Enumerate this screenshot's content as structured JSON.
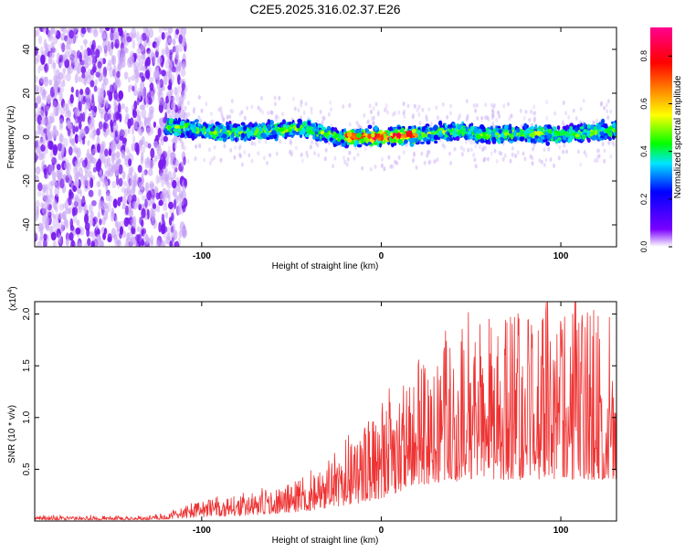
{
  "page_title": "C2E5.2025.316.02.37.E26",
  "chart_data": [
    {
      "type": "heatmap",
      "title": "C2E5.2025.316.02.37.E26",
      "xlabel": "Height of straight line (km)",
      "ylabel": "Frequency (Hz)",
      "xlim": [
        -193,
        131
      ],
      "ylim": [
        -50,
        50
      ],
      "x_ticks": [
        {
          "value": -100,
          "label": "-100"
        },
        {
          "value": 0,
          "label": "0"
        },
        {
          "value": 100,
          "label": "100"
        }
      ],
      "y_ticks": [
        {
          "value": -40,
          "label": "-40"
        },
        {
          "value": -20,
          "label": "-20"
        },
        {
          "value": 0,
          "label": "0"
        },
        {
          "value": 20,
          "label": "20"
        },
        {
          "value": 40,
          "label": "40"
        }
      ],
      "noise_region_x": [
        -193,
        -117
      ],
      "ridge": {
        "x_start": -120,
        "x_end": 131,
        "centre_hz": [
          {
            "x": -120,
            "hz": 5
          },
          {
            "x": -90,
            "hz": 2
          },
          {
            "x": -60,
            "hz": 3
          },
          {
            "x": -40,
            "hz": 4
          },
          {
            "x": -25,
            "hz": 0
          },
          {
            "x": 0,
            "hz": 0
          },
          {
            "x": 20,
            "hz": 1
          },
          {
            "x": 40,
            "hz": 3
          },
          {
            "x": 60,
            "hz": 1
          },
          {
            "x": 80,
            "hz": 2
          },
          {
            "x": 100,
            "hz": 1
          },
          {
            "x": 131,
            "hz": 3
          }
        ],
        "halfwidth_hz": 5,
        "peak_amplitude_x": [
          -20,
          20
        ],
        "peak_amplitude": 0.9
      },
      "colorbar": {
        "label": "Normalized spectral amplitude",
        "range": [
          0,
          0.92
        ],
        "ticks": [
          {
            "value": 0.0,
            "label": "0.0"
          },
          {
            "value": 0.2,
            "label": "0.2"
          },
          {
            "value": 0.4,
            "label": "0.4"
          },
          {
            "value": 0.6,
            "label": "0.6"
          },
          {
            "value": 0.8,
            "label": "0.8"
          }
        ],
        "colors": [
          "#ffffff",
          "#7a00ff",
          "#0000ff",
          "#00e5ff",
          "#00ff00",
          "#ffff00",
          "#ff8000",
          "#ff0000",
          "#ff0090"
        ]
      }
    },
    {
      "type": "line",
      "xlabel": "Height of straight line (km)",
      "ylabel": "SNR (10 * v/v)",
      "y_multiplier_label": "(x10",
      "y_multiplier_exp": "4",
      "y_multiplier_close": ")",
      "xlim": [
        -193,
        131
      ],
      "ylim": [
        0,
        2.12
      ],
      "color": "#ee3333",
      "x_ticks": [
        {
          "value": -100,
          "label": "-100"
        },
        {
          "value": 0,
          "label": "0"
        },
        {
          "value": 100,
          "label": "100"
        }
      ],
      "y_ticks": [
        {
          "value": 0.5,
          "label": "0.5"
        },
        {
          "value": 1.0,
          "label": "1.0"
        },
        {
          "value": 1.5,
          "label": "1.5"
        },
        {
          "value": 2.0,
          "label": "2.0"
        }
      ],
      "envelope": [
        {
          "x": -193,
          "base": 0.01,
          "peak": 0.05
        },
        {
          "x": -130,
          "base": 0.01,
          "peak": 0.05
        },
        {
          "x": -115,
          "base": 0.02,
          "peak": 0.1
        },
        {
          "x": -100,
          "base": 0.04,
          "peak": 0.2
        },
        {
          "x": -80,
          "base": 0.05,
          "peak": 0.25
        },
        {
          "x": -60,
          "base": 0.07,
          "peak": 0.3
        },
        {
          "x": -40,
          "base": 0.1,
          "peak": 0.42
        },
        {
          "x": -25,
          "base": 0.14,
          "peak": 0.6
        },
        {
          "x": -10,
          "base": 0.18,
          "peak": 0.9
        },
        {
          "x": 0,
          "base": 0.22,
          "peak": 1.05
        },
        {
          "x": 10,
          "base": 0.28,
          "peak": 1.25
        },
        {
          "x": 20,
          "base": 0.35,
          "peak": 1.55
        },
        {
          "x": 40,
          "base": 0.38,
          "peak": 1.75
        },
        {
          "x": 60,
          "base": 0.4,
          "peak": 2.0
        },
        {
          "x": 90,
          "base": 0.4,
          "peak": 2.05
        },
        {
          "x": 131,
          "base": 0.4,
          "peak": 2.05
        }
      ]
    }
  ]
}
